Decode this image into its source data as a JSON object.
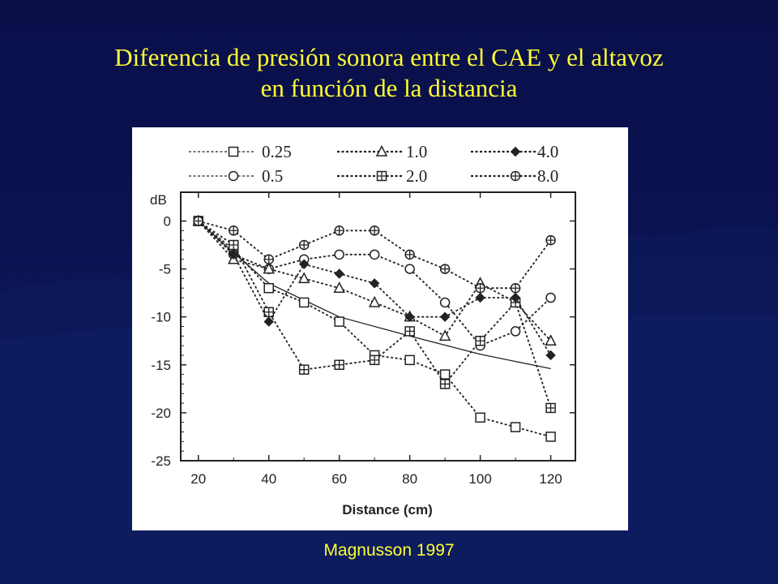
{
  "slide": {
    "title_line1": "Diferencia de presión sonora entre el CAE y el altavoz",
    "title_line2": "en función de la distancia",
    "credit": "Magnusson 1997"
  },
  "colors": {
    "title": "#ffff33",
    "background": "#0b1250",
    "chart_bg": "#ffffff",
    "ink": "#222222"
  },
  "chart_data": {
    "type": "line",
    "xlabel": "Distance (cm)",
    "ylabel": "dB",
    "xlim": [
      15,
      127
    ],
    "ylim": [
      -25,
      3
    ],
    "xticks": [
      20,
      40,
      60,
      80,
      100,
      120
    ],
    "yticks": [
      0,
      -5,
      -10,
      -15,
      -20,
      -25
    ],
    "grid": false,
    "legend_position": "top",
    "x": [
      20,
      30,
      40,
      50,
      60,
      70,
      80,
      90,
      100,
      110,
      120
    ],
    "series": [
      {
        "name": "0.25",
        "marker": "square",
        "values": [
          0,
          -3,
          -7,
          -8.5,
          -10.5,
          -14,
          -14.5,
          -16,
          -20.5,
          -21.5,
          -22.5
        ]
      },
      {
        "name": "0.5",
        "marker": "circle",
        "values": [
          0,
          -3.5,
          -5,
          -4,
          -3.5,
          -3.5,
          -5,
          -8.5,
          -13,
          -11.5,
          -8
        ]
      },
      {
        "name": "1.0",
        "marker": "triangle",
        "values": [
          0,
          -4,
          -5,
          -6,
          -7,
          -8.5,
          -10,
          -12,
          -6.5,
          -8.5,
          -12.5
        ]
      },
      {
        "name": "2.0",
        "marker": "square-cross",
        "values": [
          0,
          -2.5,
          -9.5,
          -15.5,
          -15,
          -14.5,
          -11.5,
          -17,
          -12.5,
          -8.5,
          -19.5
        ]
      },
      {
        "name": "4.0",
        "marker": "diamond",
        "values": [
          0,
          -3.5,
          -10.5,
          -4.5,
          -5.5,
          -6.5,
          -10,
          -10,
          -8,
          -8,
          -14
        ]
      },
      {
        "name": "8.0",
        "marker": "circle-cross",
        "values": [
          0,
          -1,
          -4,
          -2.5,
          -1,
          -1,
          -3.5,
          -5,
          -7,
          -7,
          -2
        ]
      }
    ],
    "trend": {
      "x": [
        20,
        30,
        40,
        60,
        80,
        100,
        120
      ],
      "values": [
        0,
        -3.3,
        -6.5,
        -10.0,
        -12.0,
        -13.9,
        -15.4
      ]
    }
  }
}
